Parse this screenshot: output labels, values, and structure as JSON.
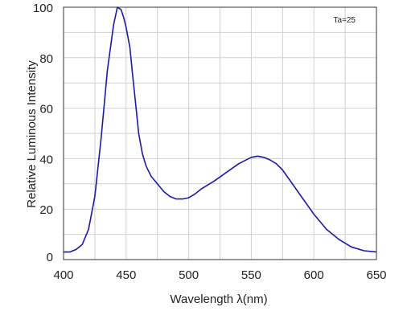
{
  "chart_data": {
    "type": "line",
    "title": "",
    "xlabel": "Wavelength λ(nm)",
    "ylabel": "Relative Luminous Intensity",
    "xlim": [
      400,
      650
    ],
    "ylim": [
      0,
      100
    ],
    "x_ticks": [
      400,
      450,
      500,
      550,
      600,
      650
    ],
    "y_ticks": [
      0,
      20,
      40,
      60,
      80,
      100
    ],
    "x_tick_labels": [
      "400",
      "450",
      "500",
      "550",
      "600",
      "650"
    ],
    "y_tick_labels": [
      "0",
      "20",
      "40",
      "60",
      "80",
      "100"
    ],
    "grid": true,
    "annotation": "Ta=25",
    "line_color": "#1a1aa8",
    "series": [
      {
        "x": [
          400,
          405,
          410,
          415,
          420,
          425,
          430,
          435,
          440,
          443,
          446,
          448,
          450,
          453,
          455,
          458,
          460,
          463,
          466,
          470,
          475,
          480,
          485,
          490,
          495,
          500,
          505,
          510,
          520,
          530,
          540,
          550,
          555,
          560,
          565,
          570,
          575,
          580,
          590,
          600,
          610,
          620,
          630,
          640,
          650
        ],
        "y": [
          3,
          3,
          4,
          6,
          12,
          25,
          48,
          75,
          93,
          100,
          99,
          96,
          92,
          84,
          74,
          60,
          50,
          42,
          37,
          33,
          30,
          27,
          25,
          24,
          24,
          24.5,
          26,
          28,
          31,
          34.5,
          38,
          40.5,
          41,
          40.5,
          39.5,
          38,
          35.5,
          32,
          25,
          18,
          12,
          8,
          5,
          3.5,
          3
        ]
      }
    ]
  }
}
